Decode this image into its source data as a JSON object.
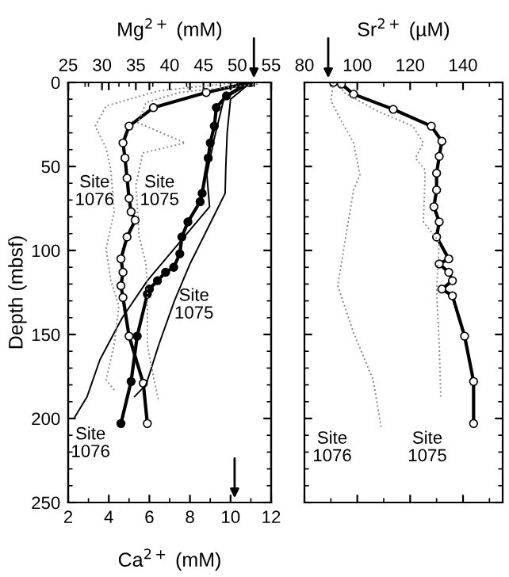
{
  "chart_data": [
    {
      "type": "line",
      "xlabel": "Ca$^{2+}$ (mM)",
      "x2label": "Mg$^{2+}$ (mM)",
      "ylabel": "Depth (mbsf)",
      "xlim": [
        2,
        12
      ],
      "xticks": [
        2,
        4,
        6,
        8,
        10,
        12
      ],
      "x2lim": [
        25,
        55
      ],
      "x2ticks": [
        25,
        30,
        35,
        40,
        45,
        50,
        55
      ],
      "ylim": [
        250,
        0
      ],
      "yticks": [
        0,
        50,
        100,
        150,
        200,
        250
      ],
      "grid": false,
      "legend": false,
      "series": [
        {
          "color": "#000000",
          "line_style": "solid",
          "marker": "circle",
          "x": [
            11.0,
            8.8,
            6.2,
            5.0,
            4.7,
            4.8,
            4.9,
            5.0,
            5.1,
            5.3,
            4.9,
            4.6,
            4.7,
            4.6,
            4.7,
            5.0,
            5.7,
            5.9
          ],
          "values": [
            0,
            6,
            15,
            26,
            36,
            45,
            57,
            69,
            77,
            82,
            92,
            105,
            113,
            121,
            128,
            151,
            179,
            203
          ]
        },
        {
          "color": "#000000",
          "line_style": "solid",
          "marker": "circle",
          "x": [
            10.9,
            9.8,
            9.3,
            9.2,
            9.0,
            8.9,
            8.6,
            8.5,
            7.9,
            7.6,
            7.5,
            7.2,
            6.8,
            6.4,
            6.0,
            5.9,
            5.4,
            5.1,
            4.6
          ],
          "values": [
            0,
            8,
            15,
            26,
            36,
            45,
            66,
            71,
            83,
            92,
            102,
            110,
            113,
            118,
            123,
            126,
            151,
            178,
            203
          ]
        },
        {
          "color": "#000000",
          "line_style": "solid",
          "marker": "none",
          "axis": "x2",
          "x": [
            52,
            48,
            46.5,
            45.5,
            45.9,
            36.7,
            33,
            29.7,
            27.8,
            26
          ],
          "values": [
            0,
            10,
            35,
            55,
            74,
            118,
            140,
            165,
            187,
            199
          ]
        },
        {
          "color": "#000000",
          "line_style": "solid",
          "marker": "none",
          "axis": "x2",
          "x": [
            52,
            49,
            48.5,
            48.3,
            48.2,
            46.1,
            43,
            40.7,
            38.4,
            36.5,
            34.8
          ],
          "values": [
            0,
            10,
            30,
            50,
            66,
            83,
            108,
            130,
            156,
            180,
            187
          ]
        },
        {
          "color": "#888888",
          "line_style": "dotted",
          "marker": "none",
          "axis": "x2",
          "x": [
            53,
            41.4,
            36.5,
            35.3,
            42.3,
            36,
            35.5,
            35,
            35.5,
            36.5,
            36.7,
            36.7,
            37.7,
            38.4
          ],
          "values": [
            1,
            6,
            12,
            24,
            36,
            42,
            52,
            61,
            92,
            108,
            124,
            156,
            177,
            190
          ]
        },
        {
          "color": "#888888",
          "line_style": "dotted",
          "marker": "none",
          "axis": "x2",
          "x": [
            50,
            38.4,
            30.6,
            29,
            30.6,
            31.3,
            31.8,
            30.6,
            31.3,
            32.5,
            31.8,
            30.6,
            32
          ],
          "values": [
            0,
            5,
            14,
            26,
            39,
            52,
            77,
            99,
            118,
            133,
            156,
            177,
            184
          ]
        }
      ],
      "annotations": [
        "Site\n1076",
        "Site\n1075",
        "Site\n1075",
        "Site\n1076"
      ]
    },
    {
      "type": "line",
      "xlabel": "Sr$^{2+}$ (µM)",
      "xlim": [
        80,
        155
      ],
      "xticks": [
        80,
        100,
        120,
        140
      ],
      "ylim": [
        250,
        0
      ],
      "yticks": [
        0,
        50,
        100,
        150,
        200,
        250
      ],
      "tick_labels": "x",
      "grid": false,
      "legend": false,
      "series": [
        {
          "color": "#000000",
          "line_style": "solid",
          "marker": "circle",
          "x": [
            91,
            94,
            98.6,
            113.6,
            128,
            132,
            131,
            130,
            130,
            129,
            131,
            130,
            134.6,
            131,
            134.6,
            136,
            132,
            136,
            140.6,
            144,
            144
          ],
          "values": [
            0,
            1,
            7,
            16,
            26,
            35,
            44,
            54,
            64,
            74,
            83,
            92,
            105,
            108,
            113,
            118,
            123,
            127,
            151,
            178,
            203
          ]
        },
        {
          "color": "#888888",
          "line_style": "dotted",
          "marker": "none",
          "x": [
            91,
            90,
            94,
            98.6,
            101,
            98.6,
            95.6,
            92.6,
            98.6,
            106,
            109
          ],
          "values": [
            0,
            11,
            23,
            36,
            55,
            64,
            92,
            121,
            149,
            177,
            205
          ]
        },
        {
          "color": "#888888",
          "line_style": "dotted",
          "marker": "none",
          "x": [
            92.6,
            95,
            107.6,
            121,
            125,
            122,
            125.6,
            125.6,
            125,
            131,
            130,
            131,
            131.6
          ],
          "values": [
            0,
            6,
            17,
            26,
            36,
            45,
            52,
            57,
            83,
            95,
            124,
            156,
            187
          ]
        }
      ],
      "annotations": [
        "Site\n1076",
        "Site\n1075"
      ]
    }
  ]
}
